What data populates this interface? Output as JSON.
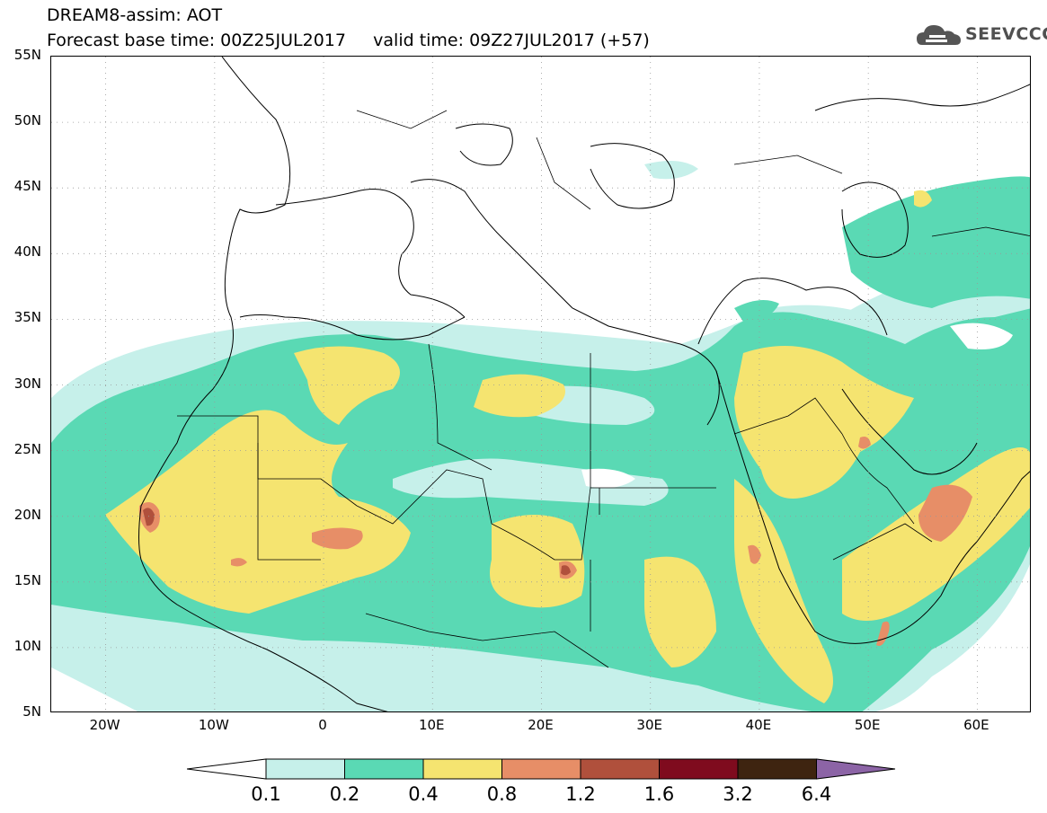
{
  "header": {
    "title_line1": "DREAM8-assim: AOT",
    "title_line2": "Forecast base time: 00Z25JUL2017     valid time: 09Z27JUL2017 (+57)"
  },
  "logo": {
    "text": "SEEVCCC",
    "icon": "cloud-icon"
  },
  "map": {
    "lat_labels": [
      "55N",
      "50N",
      "45N",
      "40N",
      "35N",
      "30N",
      "25N",
      "20N",
      "15N",
      "10N",
      "5N"
    ],
    "lon_labels": [
      "20W",
      "10W",
      "0",
      "10E",
      "20E",
      "30E",
      "40E",
      "50E",
      "60E"
    ],
    "lat_range": [
      5,
      55
    ],
    "lon_range": [
      -25,
      65
    ]
  },
  "legend": {
    "levels": [
      "0.1",
      "0.2",
      "0.4",
      "0.8",
      "1.2",
      "1.6",
      "3.2",
      "6.4"
    ],
    "colors": [
      "#c6f0ea",
      "#5ad9b4",
      "#f5e470",
      "#e78e67",
      "#b0503c",
      "#7f0b1e",
      "#3e2410",
      "#8c64a6"
    ]
  }
}
